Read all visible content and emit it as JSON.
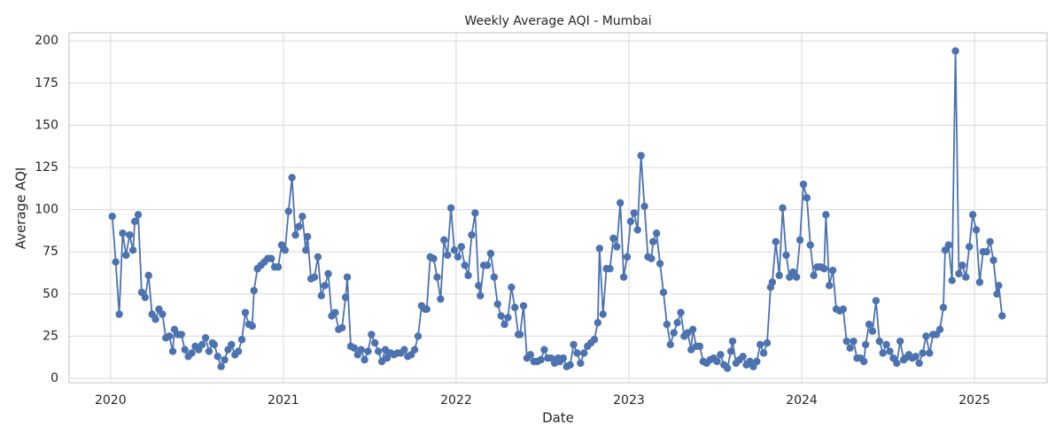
{
  "chart_data": {
    "type": "line",
    "title": "Weekly Average AQI - Mumbai",
    "x_label": "Date",
    "y_label": "Average AQI",
    "x": [
      2020.01,
      2020.03,
      2020.05,
      2020.07,
      2020.09,
      2020.11,
      2020.13,
      2020.14,
      2020.16,
      2020.18,
      2020.2,
      2020.22,
      2020.24,
      2020.26,
      2020.28,
      2020.3,
      2020.32,
      2020.34,
      2020.36,
      2020.37,
      2020.39,
      2020.41,
      2020.43,
      2020.45,
      2020.47,
      2020.49,
      2020.51,
      2020.53,
      2020.55,
      2020.57,
      2020.59,
      2020.6,
      2020.62,
      2020.64,
      2020.66,
      2020.68,
      2020.7,
      2020.72,
      2020.74,
      2020.76,
      2020.78,
      2020.8,
      2020.82,
      2020.83,
      2020.85,
      2020.87,
      2020.89,
      2020.91,
      2020.93,
      2020.95,
      2020.97,
      2020.99,
      2021.01,
      2021.03,
      2021.05,
      2021.07,
      2021.09,
      2021.11,
      2021.13,
      2021.14,
      2021.16,
      2021.18,
      2021.2,
      2021.22,
      2021.24,
      2021.26,
      2021.28,
      2021.3,
      2021.32,
      2021.34,
      2021.36,
      2021.37,
      2021.39,
      2021.41,
      2021.43,
      2021.45,
      2021.47,
      2021.49,
      2021.51,
      2021.53,
      2021.55,
      2021.57,
      2021.59,
      2021.6,
      2021.62,
      2021.64,
      2021.66,
      2021.68,
      2021.7,
      2021.72,
      2021.74,
      2021.76,
      2021.78,
      2021.8,
      2021.82,
      2021.83,
      2021.85,
      2021.87,
      2021.89,
      2021.91,
      2021.93,
      2021.95,
      2021.97,
      2021.99,
      2022.01,
      2022.03,
      2022.05,
      2022.07,
      2022.09,
      2022.11,
      2022.13,
      2022.14,
      2022.16,
      2022.18,
      2022.2,
      2022.22,
      2022.24,
      2022.26,
      2022.28,
      2022.3,
      2022.32,
      2022.34,
      2022.36,
      2022.37,
      2022.39,
      2022.41,
      2022.43,
      2022.45,
      2022.47,
      2022.49,
      2022.51,
      2022.53,
      2022.55,
      2022.57,
      2022.59,
      2022.6,
      2022.62,
      2022.64,
      2022.66,
      2022.68,
      2022.7,
      2022.72,
      2022.74,
      2022.76,
      2022.78,
      2022.8,
      2022.82,
      2022.83,
      2022.85,
      2022.87,
      2022.89,
      2022.91,
      2022.93,
      2022.95,
      2022.97,
      2022.99,
      2023.01,
      2023.03,
      2023.05,
      2023.07,
      2023.09,
      2023.11,
      2023.13,
      2023.14,
      2023.16,
      2023.18,
      2023.2,
      2023.22,
      2023.24,
      2023.26,
      2023.28,
      2023.3,
      2023.32,
      2023.34,
      2023.36,
      2023.37,
      2023.39,
      2023.41,
      2023.43,
      2023.45,
      2023.47,
      2023.49,
      2023.51,
      2023.53,
      2023.55,
      2023.57,
      2023.59,
      2023.6,
      2023.62,
      2023.64,
      2023.66,
      2023.68,
      2023.7,
      2023.72,
      2023.74,
      2023.76,
      2023.78,
      2023.8,
      2023.82,
      2023.83,
      2023.85,
      2023.87,
      2023.89,
      2023.91,
      2023.93,
      2023.95,
      2023.97,
      2023.99,
      2024.01,
      2024.03,
      2024.05,
      2024.07,
      2024.09,
      2024.11,
      2024.13,
      2024.14,
      2024.16,
      2024.18,
      2024.2,
      2024.22,
      2024.24,
      2024.26,
      2024.28,
      2024.3,
      2024.32,
      2024.34,
      2024.36,
      2024.37,
      2024.39,
      2024.41,
      2024.43,
      2024.45,
      2024.47,
      2024.49,
      2024.51,
      2024.53,
      2024.55,
      2024.57,
      2024.59,
      2024.6,
      2024.62,
      2024.64,
      2024.66,
      2024.68,
      2024.7,
      2024.72,
      2024.74,
      2024.76,
      2024.78,
      2024.8,
      2024.82,
      2024.83,
      2024.85,
      2024.87,
      2024.89,
      2024.91,
      2024.93,
      2024.95,
      2024.97,
      2024.99,
      2025.01,
      2025.03,
      2025.05,
      2025.07,
      2025.09,
      2025.11,
      2025.13,
      2025.14,
      2025.16
    ],
    "series": [
      {
        "name": "Mumbai",
        "color": "#4c72b0",
        "values": [
          96,
          69,
          38,
          86,
          73,
          85,
          76,
          93,
          97,
          51,
          48,
          61,
          38,
          35,
          41,
          38,
          24,
          25,
          16,
          29,
          26,
          26,
          17,
          13,
          15,
          19,
          17,
          20,
          24,
          16,
          21,
          20,
          13,
          7,
          11,
          17,
          20,
          14,
          16,
          23,
          39,
          32,
          31,
          52,
          65,
          67,
          69,
          71,
          71,
          66,
          66,
          79,
          76,
          99,
          119,
          85,
          90,
          96,
          76,
          84,
          59,
          60,
          72,
          49,
          55,
          62,
          37,
          39,
          29,
          30,
          48,
          60,
          19,
          18,
          14,
          17,
          11,
          16,
          26,
          21,
          16,
          10,
          17,
          12,
          15,
          14,
          15,
          15,
          17,
          13,
          14,
          17,
          25,
          43,
          41,
          41,
          72,
          71,
          60,
          47,
          82,
          73,
          101,
          76,
          72,
          78,
          67,
          61,
          85,
          98,
          55,
          49,
          67,
          67,
          74,
          60,
          44,
          37,
          32,
          36,
          54,
          42,
          26,
          26,
          43,
          12,
          14,
          10,
          10,
          11,
          17,
          12,
          12,
          9,
          12,
          10,
          12,
          7,
          8,
          20,
          15,
          9,
          15,
          19,
          21,
          23,
          33,
          77,
          38,
          65,
          65,
          83,
          78,
          104,
          60,
          72,
          93,
          98,
          88,
          132,
          102,
          72,
          71,
          81,
          86,
          68,
          51,
          32,
          20,
          27,
          33,
          39,
          25,
          27,
          17,
          29,
          19,
          19,
          10,
          9,
          11,
          12,
          10,
          14,
          8,
          6,
          16,
          22,
          9,
          11,
          13,
          8,
          10,
          7,
          10,
          20,
          15,
          21,
          54,
          57,
          81,
          61,
          101,
          73,
          60,
          63,
          60,
          82,
          115,
          107,
          79,
          61,
          66,
          66,
          65,
          97,
          55,
          64,
          41,
          40,
          41,
          22,
          18,
          22,
          12,
          12,
          10,
          20,
          32,
          28,
          46,
          22,
          15,
          20,
          16,
          12,
          9,
          22,
          11,
          12,
          14,
          12,
          13,
          9,
          15,
          25,
          15,
          26,
          26,
          29,
          42,
          76,
          79,
          58,
          194,
          62,
          67,
          60,
          78,
          97,
          88,
          57,
          75,
          75,
          81,
          70,
          50,
          55,
          37
        ]
      }
    ],
    "xlim": [
      2019.76,
      2025.42
    ],
    "xticks": [
      2020,
      2021,
      2022,
      2023,
      2024,
      2025
    ],
    "ylim": [
      -2.6,
      204.8
    ],
    "yticks": [
      0,
      25,
      50,
      75,
      100,
      125,
      150,
      175,
      200
    ],
    "grid": true,
    "markers": true
  }
}
